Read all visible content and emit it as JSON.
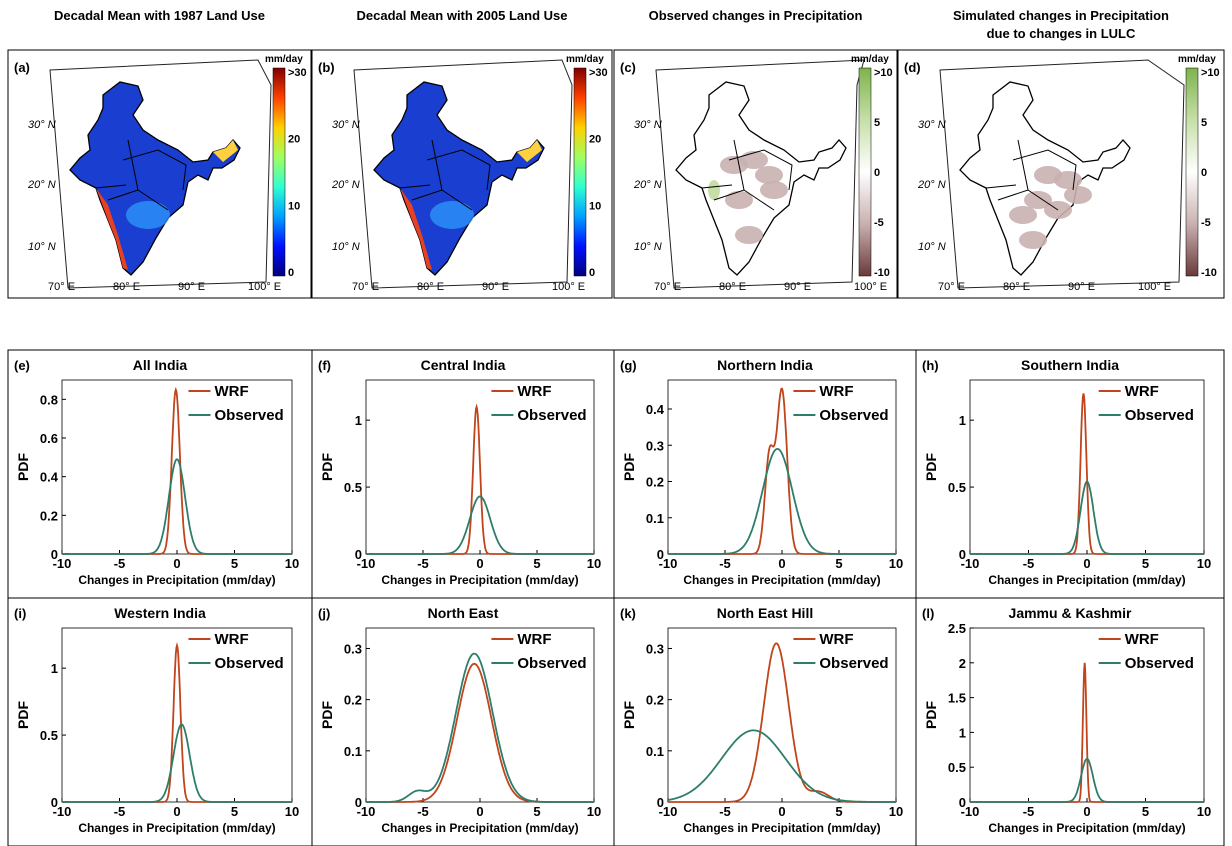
{
  "map_panels": [
    {
      "letter": "(a)",
      "title": "Decadal Mean with 1987 Land Use",
      "title2": "",
      "unit": "mm/day",
      "scale": "precip",
      "ticks": [
        ">30",
        "20",
        "10",
        "0"
      ],
      "lat_labels": [
        "30",
        "20",
        "10"
      ],
      "lon_labels": [
        "70",
        "80",
        "90",
        "100"
      ]
    },
    {
      "letter": "(b)",
      "title": "Decadal Mean with 2005 Land Use",
      "title2": "",
      "unit": "mm/day",
      "scale": "precip",
      "ticks": [
        ">30",
        "20",
        "10",
        "0"
      ],
      "lat_labels": [
        "30",
        "20",
        "10"
      ],
      "lon_labels": [
        "70",
        "80",
        "90",
        "100"
      ]
    },
    {
      "letter": "(c)",
      "title": "Observed changes in Precipitation",
      "title2": "",
      "unit": "mm/day",
      "scale": "diff",
      "ticks": [
        ">10",
        "5",
        "0",
        "-5",
        "-10"
      ],
      "lat_labels": [
        "30",
        "20",
        "10"
      ],
      "lon_labels": [
        "70",
        "80",
        "90",
        "100"
      ]
    },
    {
      "letter": "(d)",
      "title": "Simulated changes in Precipitation",
      "title2": "due  to changes in LULC",
      "unit": "mm/day",
      "scale": "diff",
      "ticks": [
        ">10",
        "5",
        "0",
        "-5",
        "-10"
      ],
      "lat_labels": [
        "30",
        "20",
        "10"
      ],
      "lon_labels": [
        "70",
        "80",
        "90",
        "100"
      ]
    }
  ],
  "colors": {
    "wrf": "#c0441c",
    "observed": "#2e7d6b",
    "precip_scale": [
      "#00007f",
      "#0010ff",
      "#00a0ff",
      "#30ffd0",
      "#a0ff60",
      "#ffd000",
      "#ff4000",
      "#800000"
    ],
    "diff_scale": [
      "#6b3a3a",
      "#c9b0b0",
      "#ffffff",
      "#c6dfa8",
      "#7fb34d"
    ]
  },
  "chart_data": [
    {
      "type": "line",
      "letter": "(e)",
      "title": "All India",
      "xlabel": "Changes in Precipitation (mm/day)",
      "ylabel": "PDF",
      "xlim": [
        -10,
        10
      ],
      "ylim": [
        0,
        0.9
      ],
      "xticks": [
        -10,
        -5,
        0,
        5,
        10
      ],
      "yticks": [
        0,
        0.2,
        0.4,
        0.6,
        0.8
      ],
      "series": [
        {
          "name": "WRF",
          "peak": 0.85,
          "center": -0.1,
          "width": 0.35,
          "secondary": []
        },
        {
          "name": "Observed",
          "peak": 0.49,
          "center": 0,
          "width": 0.7,
          "secondary": []
        }
      ]
    },
    {
      "type": "line",
      "letter": "(f)",
      "title": "Central India",
      "xlabel": "Changes in Precipitation (mm/day)",
      "ylabel": "PDF",
      "xlim": [
        -10,
        10
      ],
      "ylim": [
        0,
        1.3
      ],
      "xticks": [
        -10,
        -5,
        0,
        5,
        10
      ],
      "yticks": [
        0,
        0.5,
        1
      ],
      "series": [
        {
          "name": "WRF",
          "peak": 1.1,
          "center": -0.3,
          "width": 0.3,
          "secondary": []
        },
        {
          "name": "Observed",
          "peak": 0.43,
          "center": 0,
          "width": 0.9,
          "secondary": []
        }
      ]
    },
    {
      "type": "line",
      "letter": "(g)",
      "title": "Northern India",
      "xlabel": "Changes in Precipitation (mm/day)",
      "ylabel": "PDF",
      "xlim": [
        -10,
        10
      ],
      "ylim": [
        0,
        0.48
      ],
      "xticks": [
        -10,
        -5,
        0,
        5,
        10
      ],
      "yticks": [
        0,
        0.1,
        0.2,
        0.3,
        0.4
      ],
      "series": [
        {
          "name": "WRF",
          "peak": 0.45,
          "center": 0,
          "width": 0.45,
          "secondary": [
            {
              "peak": 0.27,
              "center": -1.1,
              "width": 0.4
            }
          ]
        },
        {
          "name": "Observed",
          "peak": 0.29,
          "center": -0.4,
          "width": 1.3,
          "secondary": []
        }
      ]
    },
    {
      "type": "line",
      "letter": "(h)",
      "title": "Southern India",
      "xlabel": "Changes in Precipitation (mm/day)",
      "ylabel": "PDF",
      "xlim": [
        -10,
        10
      ],
      "ylim": [
        0,
        1.3
      ],
      "xticks": [
        -10,
        -5,
        0,
        5,
        10
      ],
      "yticks": [
        0,
        0.5,
        1
      ],
      "series": [
        {
          "name": "WRF",
          "peak": 1.2,
          "center": -0.3,
          "width": 0.25,
          "secondary": []
        },
        {
          "name": "Observed",
          "peak": 0.54,
          "center": 0,
          "width": 0.55,
          "secondary": []
        }
      ]
    },
    {
      "type": "line",
      "letter": "(i)",
      "title": "Western India",
      "xlabel": "Changes in Precipitation (mm/day)",
      "ylabel": "PDF",
      "xlim": [
        -10,
        10
      ],
      "ylim": [
        0,
        1.3
      ],
      "xticks": [
        -10,
        -5,
        0,
        5,
        10
      ],
      "yticks": [
        0,
        0.5,
        1
      ],
      "series": [
        {
          "name": "WRF",
          "peak": 1.17,
          "center": 0,
          "width": 0.3,
          "secondary": []
        },
        {
          "name": "Observed",
          "peak": 0.58,
          "center": 0.4,
          "width": 0.7,
          "secondary": []
        }
      ]
    },
    {
      "type": "line",
      "letter": "(j)",
      "title": "North East",
      "xlabel": "Changes in Precipitation (mm/day)",
      "ylabel": "PDF",
      "xlim": [
        -10,
        10
      ],
      "ylim": [
        0,
        0.34
      ],
      "xticks": [
        -10,
        -5,
        0,
        5,
        10
      ],
      "yticks": [
        0,
        0.1,
        0.2,
        0.3
      ],
      "series": [
        {
          "name": "WRF",
          "peak": 0.27,
          "center": -0.5,
          "width": 1.5,
          "secondary": []
        },
        {
          "name": "Observed",
          "peak": 0.29,
          "center": -0.5,
          "width": 1.6,
          "secondary": [
            {
              "peak": 0.02,
              "center": -5.5,
              "width": 0.8
            }
          ]
        }
      ]
    },
    {
      "type": "line",
      "letter": "(k)",
      "title": "North East Hill",
      "xlabel": "Changes in Precipitation (mm/day)",
      "ylabel": "PDF",
      "xlim": [
        -10,
        10
      ],
      "ylim": [
        0,
        0.34
      ],
      "xticks": [
        -10,
        -5,
        0,
        5,
        10
      ],
      "yticks": [
        0,
        0.1,
        0.2,
        0.3
      ],
      "series": [
        {
          "name": "WRF",
          "peak": 0.31,
          "center": -0.5,
          "width": 1.1,
          "secondary": [
            {
              "peak": 0.02,
              "center": 3.2,
              "width": 0.9
            }
          ]
        },
        {
          "name": "Observed",
          "peak": 0.14,
          "center": -2.5,
          "width": 2.8,
          "secondary": []
        }
      ]
    },
    {
      "type": "line",
      "letter": "(l)",
      "title": "Jammu & Kashmir",
      "xlabel": "Changes in Precipitation (mm/day)",
      "ylabel": "PDF",
      "xlim": [
        -10,
        10
      ],
      "ylim": [
        0,
        2.5
      ],
      "xticks": [
        -10,
        -5,
        0,
        5,
        10
      ],
      "yticks": [
        0,
        0.5,
        1,
        1.5,
        2,
        2.5
      ],
      "series": [
        {
          "name": "WRF",
          "peak": 2.0,
          "center": -0.2,
          "width": 0.15,
          "secondary": []
        },
        {
          "name": "Observed",
          "peak": 0.62,
          "center": 0,
          "width": 0.5,
          "secondary": []
        }
      ]
    }
  ]
}
